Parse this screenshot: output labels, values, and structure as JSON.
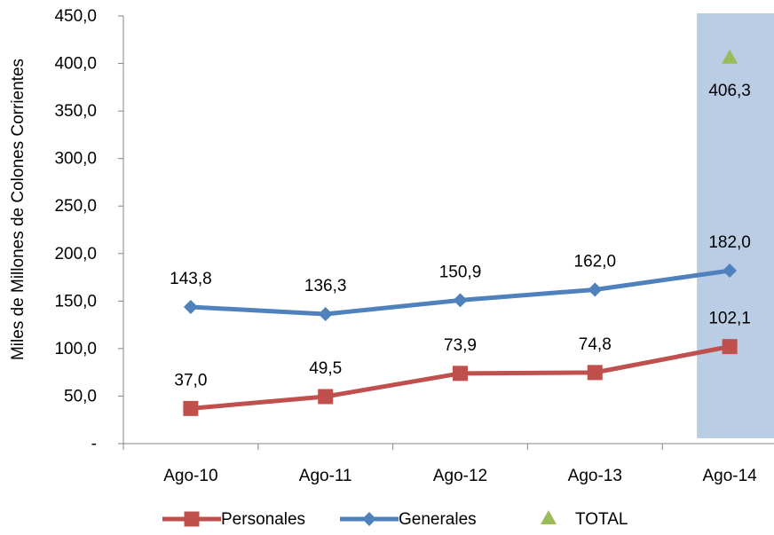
{
  "chart_data": {
    "type": "line",
    "categories": [
      "Ago-10",
      "Ago-11",
      "Ago-12",
      "Ago-13",
      "Ago-14"
    ],
    "ylabel": "Miles de Millones de Colones Corrientes",
    "ylim": [
      0,
      450
    ],
    "yticks": [
      "-",
      "50,0",
      "100,0",
      "150,0",
      "200,0",
      "250,0",
      "300,0",
      "350,0",
      "400,0",
      "450,0"
    ],
    "series": [
      {
        "name": "Personales",
        "color": "#c0504d",
        "marker": "square",
        "values": [
          37.0,
          49.5,
          73.9,
          74.8,
          102.1
        ],
        "labels": [
          "37,0",
          "49,5",
          "73,9",
          "74,8",
          "102,1"
        ]
      },
      {
        "name": "Generales",
        "color": "#4f81bd",
        "marker": "diamond",
        "values": [
          143.8,
          136.3,
          150.9,
          162.0,
          182.0
        ],
        "labels": [
          "143,8",
          "136,3",
          "150,9",
          "162,0",
          "182,0"
        ]
      },
      {
        "name": "TOTAL",
        "color": "#9bbb59",
        "marker": "triangle",
        "values": [
          null,
          null,
          null,
          null,
          406.3
        ],
        "labels": [
          "",
          "",
          "",
          "",
          "406,3"
        ]
      }
    ],
    "highlight_category": "Ago-14",
    "highlight_color": "#b9cde5",
    "legend": "bottom",
    "grid": false
  }
}
